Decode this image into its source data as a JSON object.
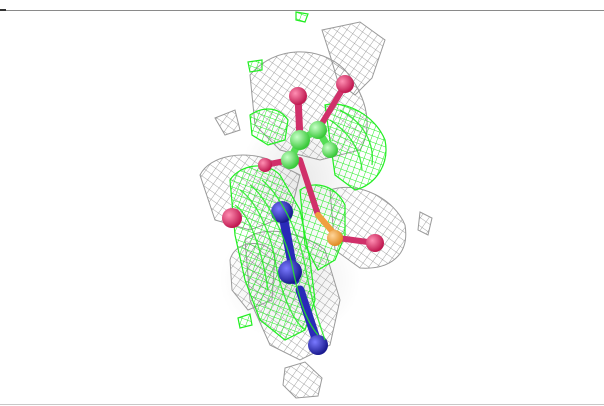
{
  "scene": {
    "colors": {
      "mesh_gray": "#8c8c8c",
      "mesh_green": "#22ee22",
      "atom_carbon": "#6fe86f",
      "atom_oxygen": "#e0306a",
      "atom_nitrogen": "#2a2ab8",
      "atom_phosphorus": "#f0a040",
      "surface_shadow": "#dcdcdc",
      "background": "#ffffff",
      "frame_line": "#8a8a8a"
    }
  }
}
